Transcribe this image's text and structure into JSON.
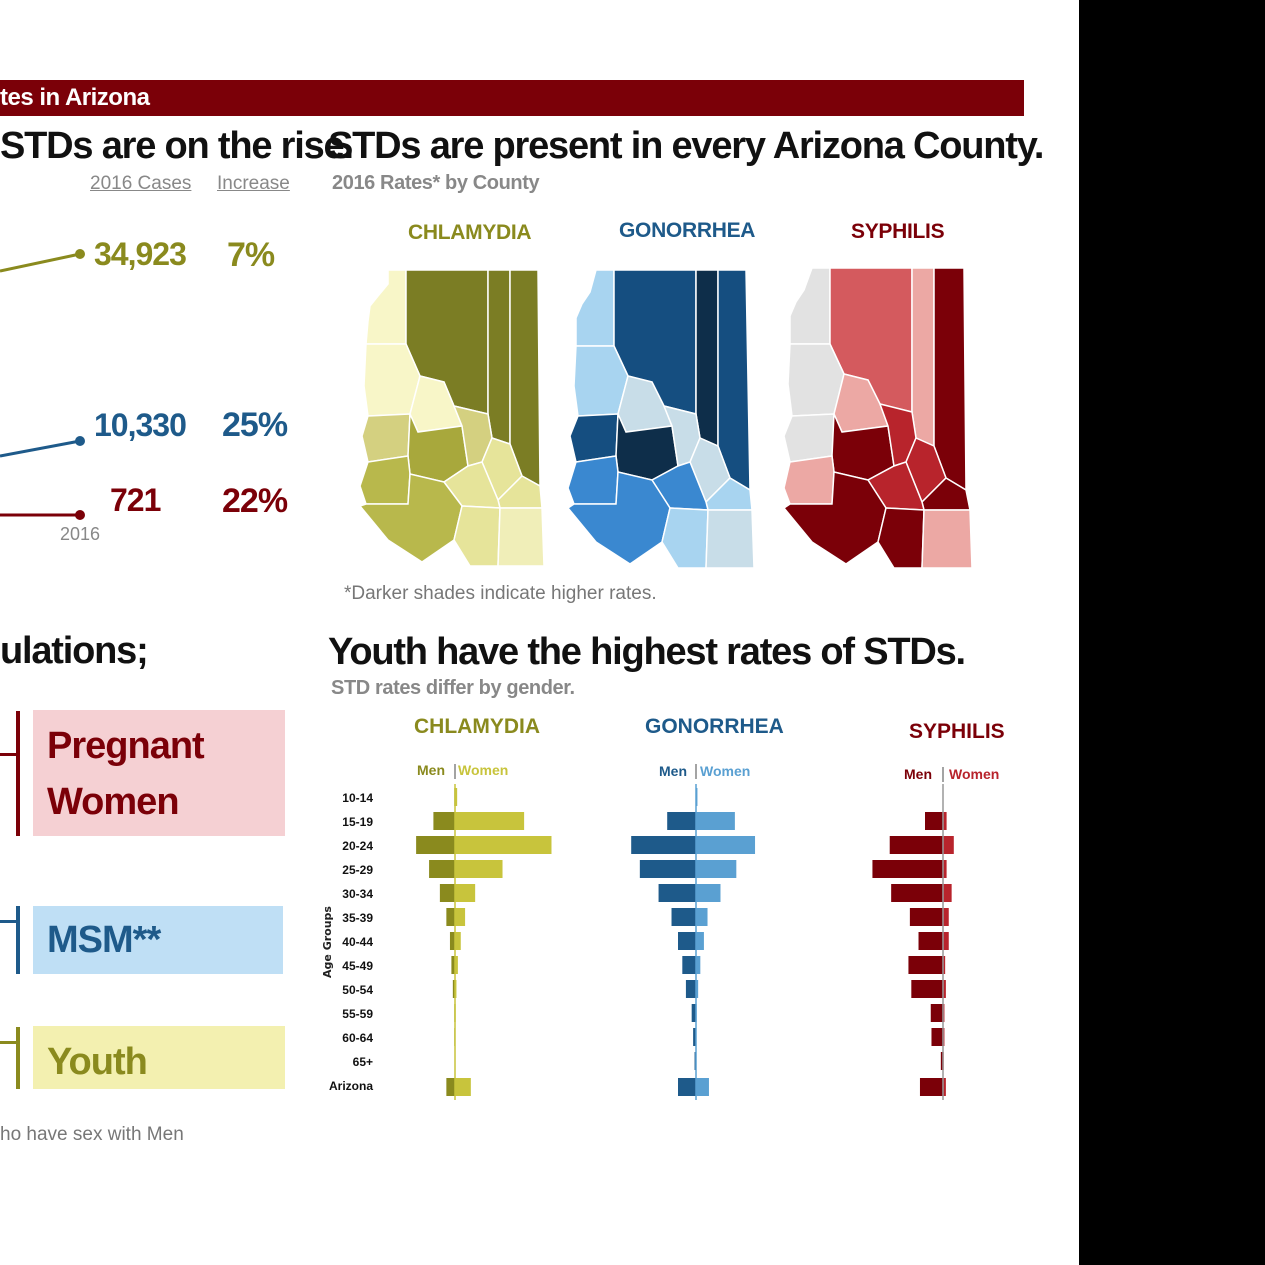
{
  "banner_title": "tes in Arizona",
  "left_panel": {
    "title": "STDs are on the rise.",
    "col_cases": "2016 Cases",
    "col_increase": "Increase",
    "year_label": "2016",
    "rows": [
      {
        "name": "chlamydia",
        "cases": "34,923",
        "increase": "7%",
        "color": "#8a8a1e"
      },
      {
        "name": "gonorrhea",
        "cases": "10,330",
        "increase": "25%",
        "color": "#1e5a8a"
      },
      {
        "name": "syphilis",
        "cases": "721",
        "increase": "22%",
        "color": "#7b0008"
      }
    ]
  },
  "map_panel": {
    "title": "STDs are present in every Arizona County.",
    "subtitle": "2016 Rates* by County",
    "maps": [
      {
        "name": "CHLAMYDIA",
        "color": "#8a8a1e"
      },
      {
        "name": "GONORRHEA",
        "color": "#1e5a8a"
      },
      {
        "name": "SYPHILIS",
        "color": "#7b0008"
      }
    ],
    "note": "*Darker shades indicate higher rates."
  },
  "populations": {
    "title": "ulations;",
    "boxes": [
      {
        "label_line1": "Pregnant",
        "label_line2": "Women",
        "bg": "#f5d0d3",
        "fg": "#7b0008"
      },
      {
        "label_line1": "MSM**",
        "label_line2": "",
        "bg": "#bfdff5",
        "fg": "#1e5a8a"
      },
      {
        "label_line1": "Youth",
        "label_line2": "",
        "bg": "#f3f0b0",
        "fg": "#8a8a1e"
      }
    ],
    "footnote": "ho have sex with Men"
  },
  "chart_data": {
    "type": "bar",
    "title": "Youth have the highest rates of STDs.",
    "subtitle": "STD rates differ by gender.",
    "ylabel": "Age Groups",
    "men_label": "Men",
    "women_label": "Women",
    "categories": [
      "10-14",
      "15-19",
      "20-24",
      "25-29",
      "30-34",
      "35-39",
      "40-44",
      "45-49",
      "50-54",
      "55-59",
      "60-64",
      "65+",
      "Arizona"
    ],
    "panels": [
      {
        "name": "CHLAMYDIA",
        "men_color": "#8a8a1e",
        "women_color": "#c8c43c",
        "scale": 100,
        "men": [
          1,
          30,
          54,
          36,
          21,
          12,
          7,
          5,
          3,
          1,
          1,
          0.5,
          12
        ],
        "women": [
          3,
          96,
          134,
          66,
          28,
          14,
          8,
          4,
          2,
          1,
          0.5,
          0.3,
          22
        ]
      },
      {
        "name": "GONORRHEA",
        "men_color": "#1e5a8a",
        "women_color": "#5aa0d2",
        "scale": 100,
        "men": [
          0.5,
          40,
          90,
          78,
          52,
          34,
          25,
          19,
          14,
          6,
          4,
          2,
          25
        ],
        "women": [
          2,
          54,
          82,
          56,
          34,
          16,
          11,
          6,
          3,
          1,
          0.5,
          0.3,
          18
        ]
      },
      {
        "name": "SYPHILIS",
        "men_color": "#7b0008",
        "women_color": "#b8242c",
        "scale": 100,
        "men": [
          0,
          25,
          74,
          98,
          72,
          46,
          34,
          48,
          44,
          17,
          16,
          3,
          32
        ],
        "women": [
          0,
          5,
          15,
          5,
          12,
          8,
          8,
          3,
          4,
          2,
          2,
          1,
          4
        ]
      }
    ]
  }
}
